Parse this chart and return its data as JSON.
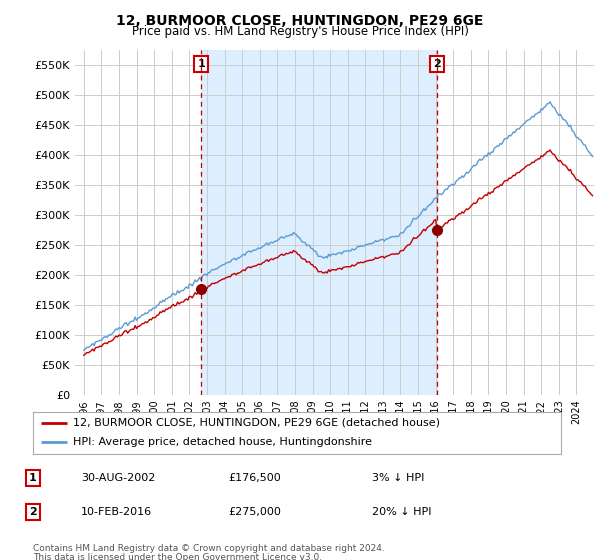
{
  "title": "12, BURMOOR CLOSE, HUNTINGDON, PE29 6GE",
  "subtitle": "Price paid vs. HM Land Registry's House Price Index (HPI)",
  "legend_line1": "12, BURMOOR CLOSE, HUNTINGDON, PE29 6GE (detached house)",
  "legend_line2": "HPI: Average price, detached house, Huntingdonshire",
  "sale1_date": "30-AUG-2002",
  "sale1_price": 176500,
  "sale1_label": "3% ↓ HPI",
  "sale2_date": "10-FEB-2016",
  "sale2_price": 275000,
  "sale2_label": "20% ↓ HPI",
  "footer": "Contains HM Land Registry data © Crown copyright and database right 2024.\nThis data is licensed under the Open Government Licence v3.0.",
  "hpi_color": "#5b9bd5",
  "price_color": "#c00000",
  "vline_color": "#c00000",
  "marker_color": "#8b0000",
  "shade_color": "#ddeeff",
  "background_color": "#ffffff",
  "grid_color": "#cccccc",
  "ylim": [
    0,
    575000
  ],
  "yticks": [
    0,
    50000,
    100000,
    150000,
    200000,
    250000,
    300000,
    350000,
    400000,
    450000,
    500000,
    550000
  ],
  "ytick_labels": [
    "£0",
    "£50K",
    "£100K",
    "£150K",
    "£200K",
    "£250K",
    "£300K",
    "£350K",
    "£400K",
    "£450K",
    "£500K",
    "£550K"
  ],
  "sale1_year_f": 2002.667,
  "sale2_year_f": 2016.083
}
